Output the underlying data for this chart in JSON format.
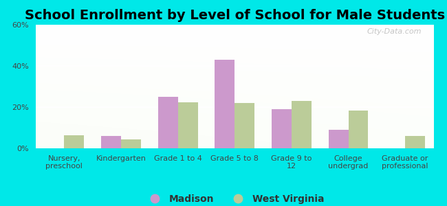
{
  "title": "School Enrollment by Level of School for Male Students",
  "categories": [
    "Nursery,\npreschool",
    "Kindergarten",
    "Grade 1 to 4",
    "Grade 5 to 8",
    "Grade 9 to\n12",
    "College\nundergrad",
    "Graduate or\nprofessional"
  ],
  "madison": [
    0.0,
    6.0,
    25.0,
    43.0,
    19.0,
    9.0,
    0.0
  ],
  "west_virginia": [
    6.5,
    4.5,
    22.5,
    22.0,
    23.0,
    18.5,
    6.0
  ],
  "madison_color": "#cc99cc",
  "wv_color": "#bbcc99",
  "bg_outer": "#00e8e8",
  "ylim": [
    0,
    60
  ],
  "yticks": [
    0,
    20,
    40,
    60
  ],
  "ytick_labels": [
    "0%",
    "20%",
    "40%",
    "60%"
  ],
  "bar_width": 0.35,
  "legend_madison": "Madison",
  "legend_wv": "West Virginia",
  "title_fontsize": 14,
  "tick_fontsize": 8,
  "legend_fontsize": 10,
  "watermark": "City-Data.com"
}
